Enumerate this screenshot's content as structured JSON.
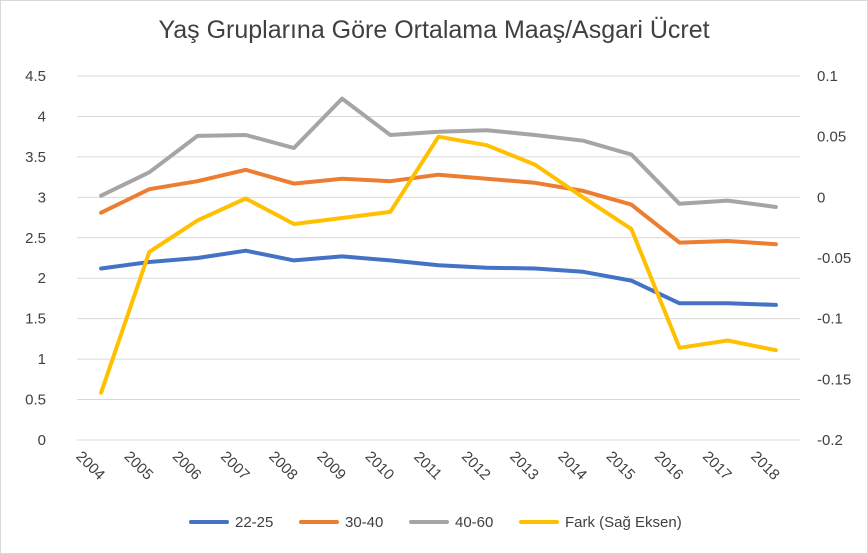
{
  "chart_data": {
    "type": "line",
    "title": "Yaş Gruplarına Göre Ortalama Maaş/Asgari Ücret",
    "categories": [
      "2004",
      "2005",
      "2006",
      "2007",
      "2008",
      "2009",
      "2010",
      "2011",
      "2012",
      "2013",
      "2014",
      "2015",
      "2016",
      "2017",
      "2018"
    ],
    "y_left": {
      "ticks": [
        "0",
        "0.5",
        "1",
        "1.5",
        "2",
        "2.5",
        "3",
        "3.5",
        "4",
        "4.5"
      ],
      "ylim": [
        0,
        4.5
      ]
    },
    "y_right": {
      "ticks": [
        "0.1",
        "0.05",
        "0",
        "-0.05",
        "-0.1",
        "-0.15",
        "-0.2"
      ],
      "ylim": [
        -0.2,
        0.1
      ]
    },
    "grid": "horizontal",
    "legend_position": "bottom",
    "series": [
      {
        "name": "22-25",
        "axis": "left",
        "color": "#4472C4",
        "values": [
          2.12,
          2.2,
          2.25,
          2.34,
          2.22,
          2.27,
          2.22,
          2.16,
          2.13,
          2.12,
          2.08,
          1.97,
          1.69,
          1.69,
          1.67
        ]
      },
      {
        "name": "30-40",
        "axis": "left",
        "color": "#ED7D31",
        "values": [
          2.81,
          3.1,
          3.2,
          3.34,
          3.17,
          3.23,
          3.2,
          3.28,
          3.23,
          3.18,
          3.08,
          2.91,
          2.44,
          2.46,
          2.42
        ]
      },
      {
        "name": "40-60",
        "axis": "left",
        "color": "#A5A5A5",
        "values": [
          3.02,
          3.31,
          3.76,
          3.77,
          3.61,
          4.22,
          3.77,
          3.81,
          3.83,
          3.77,
          3.7,
          3.53,
          2.92,
          2.96,
          2.88
        ]
      },
      {
        "name": "Fark (Sağ Eksen)",
        "axis": "right",
        "color": "#FFC000",
        "values": [
          -0.161,
          -0.045,
          -0.019,
          -0.001,
          -0.022,
          -0.017,
          -0.012,
          0.05,
          0.043,
          0.027,
          0.0,
          -0.026,
          -0.124,
          -0.118,
          -0.126
        ]
      }
    ]
  }
}
